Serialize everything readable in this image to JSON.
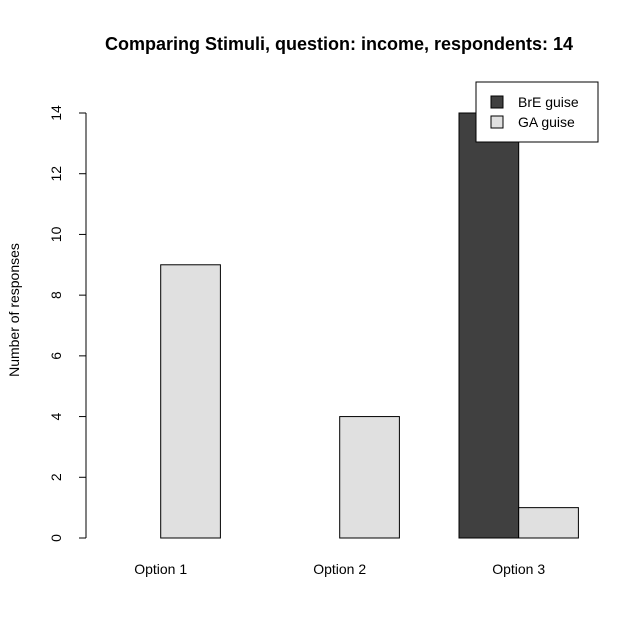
{
  "chart_data": {
    "type": "bar",
    "title": "Comparing Stimuli, question: income, respondents: 14",
    "xlabel": "",
    "ylabel": "Number of responses",
    "categories": [
      "Option 1",
      "Option 2",
      "Option 3"
    ],
    "series": [
      {
        "name": "BrE guise",
        "color": "#404040",
        "values": [
          0,
          0,
          14
        ]
      },
      {
        "name": "GA guise",
        "color": "#e0e0e0",
        "values": [
          9,
          4,
          1
        ]
      }
    ],
    "ylim": [
      0,
      14
    ],
    "yticks": [
      0,
      2,
      4,
      6,
      8,
      10,
      12,
      14
    ],
    "grid": false,
    "legend_position": "top-right"
  }
}
